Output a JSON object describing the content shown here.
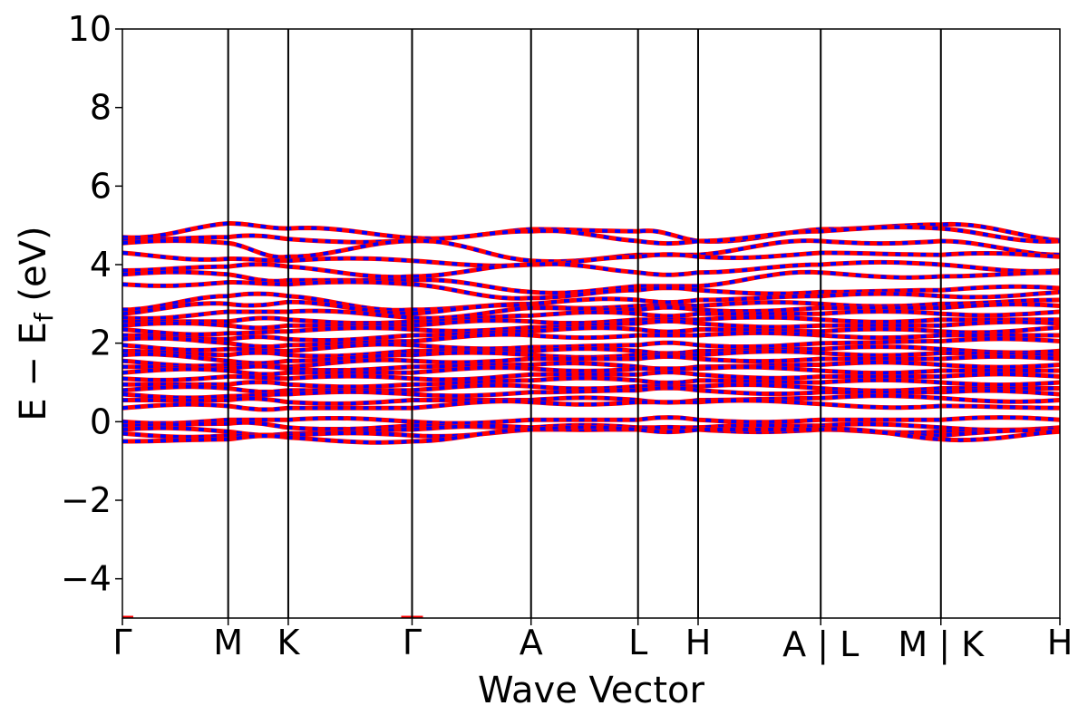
{
  "chart_data": {
    "type": "line",
    "title": "",
    "xlabel": "Wave Vector",
    "ylabel_parts": {
      "main": "E − E",
      "sub": "f",
      "unit": " (eV)"
    },
    "ylim": [
      -5,
      10
    ],
    "yticks": [
      -4,
      -2,
      0,
      2,
      4,
      6,
      8,
      10
    ],
    "ytick_labels": [
      "−4",
      "−2",
      "0",
      "2",
      "4",
      "6",
      "8",
      "10"
    ],
    "xlim": [
      0,
      7.8
    ],
    "kpath": [
      {
        "label": "Γ",
        "x": 0.0
      },
      {
        "label": "M",
        "x": 0.88
      },
      {
        "label": "K",
        "x": 1.38
      },
      {
        "label": "Γ",
        "x": 2.41
      },
      {
        "label": "A",
        "x": 3.4
      },
      {
        "label": "L",
        "x": 4.29
      },
      {
        "label": "H",
        "x": 4.79
      },
      {
        "label": "A | L",
        "x": 5.81
      },
      {
        "label": "M | K",
        "x": 6.81
      },
      {
        "label": "H",
        "x": 7.8
      }
    ],
    "series": [
      {
        "color": "#ff0000",
        "style": "solid"
      },
      {
        "color": "#0000ff",
        "style": "dashed"
      }
    ],
    "bands_at_kpoints": [
      [
        4.7,
        5.05,
        4.92,
        4.68,
        4.9,
        4.85,
        4.6,
        4.9,
        5.02,
        4.62
      ],
      [
        4.62,
        4.7,
        4.65,
        4.62,
        4.85,
        4.6,
        4.6,
        4.85,
        4.92,
        4.6
      ],
      [
        4.55,
        4.55,
        4.2,
        4.6,
        4.1,
        4.25,
        4.25,
        4.6,
        4.6,
        4.25
      ],
      [
        4.3,
        4.15,
        4.1,
        4.1,
        4.0,
        4.2,
        4.2,
        4.3,
        4.25,
        4.2
      ],
      [
        3.85,
        3.95,
        3.95,
        3.7,
        4.0,
        3.8,
        3.8,
        4.0,
        4.0,
        3.85
      ],
      [
        3.75,
        3.75,
        3.6,
        3.6,
        3.3,
        3.45,
        3.45,
        3.8,
        3.7,
        3.8
      ],
      [
        3.5,
        3.55,
        3.5,
        3.5,
        3.15,
        3.35,
        3.35,
        3.3,
        3.35,
        3.4
      ],
      [
        2.85,
        3.2,
        3.2,
        2.85,
        3.0,
        3.1,
        3.1,
        3.2,
        3.2,
        3.3
      ],
      [
        2.75,
        3.0,
        3.05,
        2.75,
        2.95,
        2.95,
        2.95,
        3.0,
        3.0,
        3.1
      ],
      [
        2.65,
        2.8,
        2.8,
        2.65,
        2.9,
        2.85,
        2.85,
        2.9,
        2.9,
        2.95
      ],
      [
        2.55,
        2.55,
        2.6,
        2.55,
        2.7,
        2.75,
        2.75,
        2.75,
        2.75,
        2.8
      ],
      [
        2.45,
        2.45,
        2.45,
        2.45,
        2.55,
        2.6,
        2.6,
        2.6,
        2.6,
        2.6
      ],
      [
        2.35,
        2.25,
        2.3,
        2.35,
        2.4,
        2.5,
        2.5,
        2.45,
        2.45,
        2.5
      ],
      [
        2.2,
        2.1,
        2.1,
        2.2,
        2.3,
        2.35,
        2.35,
        2.3,
        2.3,
        2.4
      ],
      [
        2.1,
        2.0,
        1.95,
        2.05,
        2.2,
        2.2,
        2.2,
        2.2,
        2.2,
        2.2
      ],
      [
        1.95,
        1.85,
        1.8,
        1.95,
        1.9,
        1.95,
        1.95,
        2.0,
        2.05,
        2.05
      ],
      [
        1.8,
        1.7,
        1.7,
        1.8,
        1.8,
        1.8,
        1.8,
        1.85,
        1.85,
        1.8
      ],
      [
        1.7,
        1.55,
        1.55,
        1.7,
        1.7,
        1.7,
        1.7,
        1.75,
        1.75,
        1.7
      ],
      [
        1.55,
        1.45,
        1.4,
        1.55,
        1.6,
        1.6,
        1.6,
        1.6,
        1.6,
        1.6
      ],
      [
        1.4,
        1.35,
        1.35,
        1.4,
        1.45,
        1.4,
        1.4,
        1.45,
        1.45,
        1.45
      ],
      [
        1.25,
        1.3,
        1.25,
        1.25,
        1.35,
        1.35,
        1.35,
        1.3,
        1.3,
        1.3
      ],
      [
        1.1,
        1.15,
        1.1,
        1.1,
        1.2,
        1.2,
        1.2,
        1.15,
        1.15,
        1.15
      ],
      [
        0.95,
        0.95,
        0.95,
        0.95,
        1.05,
        1.05,
        1.05,
        1.0,
        1.0,
        1.0
      ],
      [
        0.8,
        0.85,
        0.8,
        0.8,
        0.9,
        0.9,
        0.9,
        0.85,
        0.85,
        0.85
      ],
      [
        0.7,
        0.65,
        0.7,
        0.7,
        0.75,
        0.8,
        0.8,
        0.75,
        0.75,
        0.7
      ],
      [
        0.55,
        0.55,
        0.5,
        0.55,
        0.55,
        0.55,
        0.55,
        0.6,
        0.6,
        0.55
      ],
      [
        0.35,
        0.4,
        0.35,
        0.35,
        0.5,
        0.5,
        0.5,
        0.45,
        0.4,
        0.35
      ],
      [
        0.0,
        0.05,
        0.05,
        0.0,
        0.05,
        0.05,
        0.05,
        0.05,
        0.05,
        0.05
      ],
      [
        -0.1,
        -0.05,
        -0.15,
        -0.1,
        -0.15,
        -0.15,
        -0.15,
        -0.1,
        -0.15,
        -0.15
      ],
      [
        -0.2,
        -0.25,
        -0.3,
        -0.2,
        -0.15,
        -0.15,
        -0.15,
        -0.15,
        -0.25,
        -0.2
      ],
      [
        -0.3,
        -0.35,
        -0.35,
        -0.35,
        -0.2,
        -0.2,
        -0.2,
        -0.2,
        -0.35,
        -0.25
      ],
      [
        -0.5,
        -0.45,
        -0.4,
        -0.5,
        -0.2,
        -0.2,
        -0.2,
        -0.2,
        -0.45,
        -0.25
      ]
    ]
  }
}
